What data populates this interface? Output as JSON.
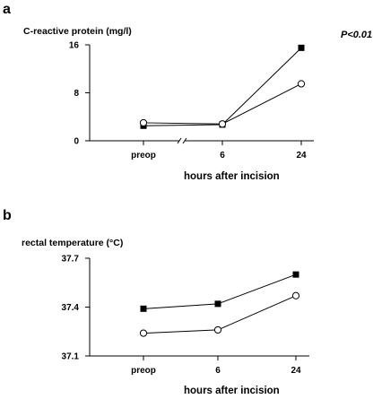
{
  "panel_a": {
    "letter": "a",
    "p_value_label": "P<0.01"
  },
  "panel_b": {
    "letter": "b"
  },
  "chart_data": [
    {
      "type": "line",
      "title": "",
      "ylabel": "C-reactive protein (mg/l)",
      "xlabel": "hours after incision",
      "categories": [
        "preop",
        "6",
        "24"
      ],
      "ylim": [
        0,
        16
      ],
      "yticks": [
        "0",
        "8",
        "16"
      ],
      "axis_break": true,
      "grid": false,
      "annotation": "P<0.01",
      "series": [
        {
          "marker": "filled-square",
          "values": [
            2.5,
            2.7,
            15.5
          ]
        },
        {
          "marker": "open-circle",
          "values": [
            3.0,
            2.8,
            9.5
          ]
        }
      ]
    },
    {
      "type": "line",
      "title": "",
      "ylabel": "rectal temperature (°C)",
      "xlabel": "hours after incision",
      "categories": [
        "preop",
        "6",
        "24"
      ],
      "ylim": [
        37.1,
        37.7
      ],
      "yticks": [
        "37.1",
        "37.4",
        "37.7"
      ],
      "axis_break": false,
      "grid": false,
      "series": [
        {
          "marker": "filled-square",
          "values": [
            37.39,
            37.42,
            37.6
          ]
        },
        {
          "marker": "open-circle",
          "values": [
            37.24,
            37.26,
            37.47
          ]
        }
      ]
    }
  ]
}
